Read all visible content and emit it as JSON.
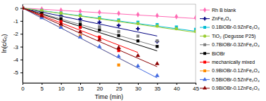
{
  "chart_data": {
    "type": "scatter",
    "x_label": "Time (min)",
    "y_label": "ln(c/c₀)",
    "xlim": [
      0,
      45
    ],
    "ylim": [
      -5.8,
      0.3
    ],
    "xticks": [
      0,
      5,
      10,
      15,
      20,
      25,
      30,
      35,
      40,
      45
    ],
    "yticks": [
      0,
      -1,
      -2,
      -3,
      -4,
      -5
    ],
    "grid": false,
    "legend": "right",
    "series": [
      {
        "name": "Rh B blank",
        "color": "#ff69b4",
        "marker": "diamond",
        "x": [
          0,
          5,
          10,
          15,
          20,
          25,
          30,
          35,
          40,
          45
        ],
        "values": [
          0,
          -0.08,
          -0.16,
          -0.25,
          -0.33,
          -0.41,
          -0.5,
          -0.58,
          -0.67,
          -0.75
        ],
        "trend": {
          "x": [
            0,
            45
          ],
          "values": [
            0,
            -0.81
          ]
        }
      },
      {
        "name": "ZnFe₂O₄",
        "color": "#000080",
        "marker": "plus",
        "x": [
          0,
          5,
          10,
          15,
          20,
          25,
          30,
          35
        ],
        "values": [
          0,
          -0.3,
          -0.6,
          -0.85,
          -1.1,
          -1.35,
          -1.6,
          -2.6
        ],
        "trend": {
          "x": [
            0,
            35
          ],
          "values": [
            0,
            -2.17
          ]
        }
      },
      {
        "name": "0.1BiOBr-0.9ZnFe₂O₄",
        "color": "#00bcd4",
        "marker": "square",
        "x": [
          0,
          5,
          10,
          15,
          20,
          25,
          30,
          35,
          40,
          45
        ],
        "values": [
          0,
          -0.18,
          -0.38,
          -0.55,
          -0.73,
          -0.92,
          -1.1,
          -1.28,
          -1.47,
          -1.65
        ],
        "trend": {
          "x": [
            0,
            45
          ],
          "values": [
            0,
            -1.8
          ]
        }
      },
      {
        "name": "TiO₂ (Degusse P25)",
        "color": "#9acd32",
        "marker": "circle",
        "x": [
          0,
          5,
          10,
          15,
          20,
          25,
          30,
          35,
          40,
          45
        ],
        "values": [
          0,
          -0.2,
          -0.4,
          -0.6,
          -0.8,
          -1.0,
          -1.2,
          -1.4,
          -1.6,
          -1.8
        ],
        "trend": {
          "x": [
            0,
            45
          ],
          "values": [
            0,
            -1.89
          ]
        }
      },
      {
        "name": "0.7BiOBr-0.3ZnFe₂O₄",
        "color": "#808080",
        "marker": "square",
        "x": [
          0,
          5,
          10,
          15,
          20,
          25,
          30,
          35
        ],
        "values": [
          0,
          -0.35,
          -0.72,
          -1.08,
          -1.45,
          -1.82,
          -2.18,
          -2.55
        ],
        "trend": {
          "x": [
            0,
            35
          ],
          "values": [
            0,
            -2.975
          ]
        }
      },
      {
        "name": "BiOBr",
        "color": "#000000",
        "marker": "square",
        "x": [
          0,
          5,
          10,
          15,
          20,
          25,
          30,
          35
        ],
        "values": [
          0,
          -0.42,
          -0.85,
          -1.28,
          -1.7,
          -2.13,
          -2.55,
          -2.98
        ],
        "trend": {
          "x": [
            0,
            35
          ],
          "values": [
            0,
            -3.325
          ]
        }
      },
      {
        "name": "mechanically mixed",
        "color": "#ff0000",
        "marker": "square",
        "x": [
          0,
          5,
          10,
          15,
          20,
          25
        ],
        "values": [
          0,
          -0.55,
          -1.05,
          -1.5,
          -2.25,
          -3.3
        ],
        "trend": {
          "x": [
            0,
            30
          ],
          "values": [
            0,
            -3.45
          ]
        }
      },
      {
        "name": "0.9BiOBr-0.1ZnFe₂O₄",
        "color": "#ff8c00",
        "marker": "square",
        "x": [
          0,
          5,
          10,
          15,
          25
        ],
        "values": [
          0,
          -0.7,
          -1.4,
          -2.15,
          -4.42
        ],
        "trend": {
          "x": [
            0,
            30
          ],
          "values": [
            0,
            -4.65
          ]
        }
      },
      {
        "name": "0.5BiOBr-0.5ZnFe₂O₄",
        "color": "#4169e1",
        "marker": "triangle",
        "x": [
          0,
          5,
          10,
          15,
          20,
          25,
          30,
          35
        ],
        "values": [
          0,
          -0.75,
          -1.5,
          -2.25,
          -3.0,
          -3.75,
          -4.5,
          -5.25
        ],
        "trend": {
          "x": [
            0,
            35
          ],
          "values": [
            0,
            -5.425
          ]
        }
      },
      {
        "name": "0.9BiOBr-0.1ZnFe₂O₄",
        "color": "#8b0000",
        "marker": "triangle",
        "x": [
          0,
          5,
          10,
          15,
          20,
          25,
          30,
          35
        ],
        "values": [
          0,
          -0.6,
          -1.25,
          -1.85,
          -2.45,
          -3.08,
          -3.7,
          -4.33
        ],
        "trend": {
          "x": [
            0,
            35
          ],
          "values": [
            0,
            -4.55
          ]
        }
      }
    ]
  }
}
